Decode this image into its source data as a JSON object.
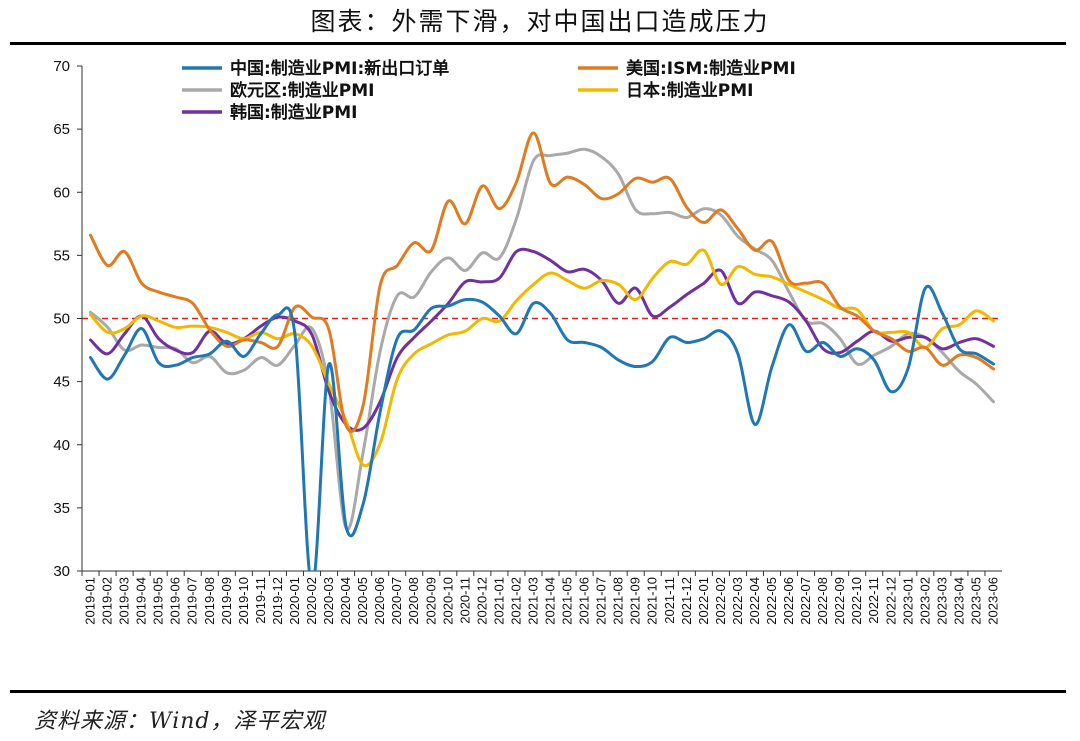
{
  "header": {
    "title": "图表：外需下滑，对中国出口造成压力"
  },
  "footer": {
    "source": "资料来源：Wind，泽平宏观"
  },
  "chart_data": {
    "type": "line",
    "ylim": [
      30,
      70
    ],
    "yticks": [
      30,
      35,
      40,
      45,
      50,
      55,
      60,
      65,
      70
    ],
    "reference_line": {
      "value": 50,
      "color": "#e02020",
      "style": "dashed"
    },
    "categories": [
      "2019-01",
      "2019-02",
      "2019-03",
      "2019-04",
      "2019-05",
      "2019-06",
      "2019-07",
      "2019-08",
      "2019-09",
      "2019-10",
      "2019-11",
      "2019-12",
      "2020-01",
      "2020-02",
      "2020-03",
      "2020-04",
      "2020-05",
      "2020-06",
      "2020-07",
      "2020-08",
      "2020-09",
      "2020-10",
      "2020-11",
      "2020-12",
      "2021-01",
      "2021-02",
      "2021-03",
      "2021-04",
      "2021-05",
      "2021-06",
      "2021-07",
      "2021-08",
      "2021-09",
      "2021-10",
      "2021-11",
      "2021-12",
      "2022-01",
      "2022-02",
      "2022-03",
      "2022-04",
      "2022-05",
      "2022-06",
      "2022-07",
      "2022-08",
      "2022-09",
      "2022-10",
      "2022-11",
      "2022-12",
      "2023-01",
      "2023-02",
      "2023-03",
      "2023-04",
      "2023-05",
      "2023-06"
    ],
    "legend_placement": "top",
    "series": [
      {
        "name": "中国:制造业PMI:新出口订单",
        "color": "#1f77b4",
        "values": [
          46.9,
          45.2,
          47.1,
          49.2,
          46.5,
          46.3,
          46.9,
          47.2,
          48.2,
          47.0,
          48.8,
          50.3,
          48.7,
          28.7,
          46.4,
          33.5,
          35.3,
          42.6,
          48.4,
          49.1,
          50.8,
          51.0,
          51.5,
          51.3,
          50.2,
          48.8,
          51.2,
          50.4,
          48.3,
          48.1,
          47.7,
          46.7,
          46.2,
          46.6,
          48.5,
          48.1,
          48.4,
          49.0,
          47.2,
          41.6,
          46.2,
          49.5,
          47.4,
          48.1,
          47.0,
          47.6,
          46.7,
          44.2,
          46.1,
          52.4,
          50.4,
          47.6,
          47.2,
          46.4
        ]
      },
      {
        "name": "美国:ISM:制造业PMI",
        "color": "#e07b20",
        "values": [
          56.6,
          54.2,
          55.3,
          52.8,
          52.1,
          51.7,
          51.2,
          49.1,
          47.8,
          48.3,
          48.1,
          47.8,
          50.9,
          50.1,
          49.1,
          41.5,
          43.1,
          52.6,
          54.2,
          56.0,
          55.4,
          59.3,
          57.5,
          60.5,
          58.7,
          60.8,
          64.7,
          60.7,
          61.2,
          60.6,
          59.5,
          59.9,
          61.1,
          60.8,
          61.1,
          58.8,
          57.6,
          58.6,
          57.1,
          55.4,
          56.1,
          53.0,
          52.8,
          52.8,
          50.9,
          50.2,
          49.0,
          48.4,
          47.4,
          47.7,
          46.3,
          47.1,
          46.9,
          46.0
        ]
      },
      {
        "name": "欧元区:制造业PMI",
        "color": "#a9a9a9",
        "values": [
          50.5,
          49.3,
          47.5,
          47.9,
          47.7,
          47.6,
          46.5,
          47.0,
          45.7,
          45.9,
          46.9,
          46.3,
          47.9,
          49.2,
          44.5,
          33.4,
          39.4,
          47.4,
          51.8,
          51.7,
          53.7,
          54.8,
          53.8,
          55.2,
          54.8,
          57.9,
          62.5,
          62.9,
          63.1,
          63.4,
          62.8,
          61.4,
          58.6,
          58.3,
          58.4,
          58.0,
          58.7,
          58.2,
          56.5,
          55.5,
          54.6,
          52.1,
          49.8,
          49.6,
          48.4,
          46.4,
          47.1,
          47.8,
          48.8,
          48.5,
          47.3,
          45.8,
          44.8,
          43.4
        ]
      },
      {
        "name": "日本:制造业PMI",
        "color": "#f2b800",
        "values": [
          50.3,
          48.9,
          49.2,
          50.2,
          49.8,
          49.3,
          49.4,
          49.3,
          48.9,
          48.4,
          48.9,
          48.4,
          48.8,
          47.8,
          44.8,
          41.9,
          38.4,
          40.1,
          45.2,
          47.2,
          48.0,
          48.7,
          49.0,
          50.0,
          49.8,
          51.4,
          52.7,
          53.6,
          53.0,
          52.4,
          53.0,
          52.7,
          51.5,
          53.2,
          54.5,
          54.3,
          55.4,
          52.7,
          54.1,
          53.5,
          53.3,
          52.7,
          52.1,
          51.5,
          50.8,
          50.7,
          49.0,
          48.9,
          48.9,
          47.7,
          49.2,
          49.5,
          50.6,
          49.8
        ]
      },
      {
        "name": "韩国:制造业PMI",
        "color": "#7030a0",
        "values": [
          48.3,
          47.2,
          48.8,
          50.2,
          48.4,
          47.5,
          47.3,
          49.0,
          48.0,
          48.4,
          49.4,
          50.1,
          49.8,
          48.7,
          44.2,
          41.6,
          41.3,
          43.4,
          46.9,
          48.5,
          49.8,
          51.2,
          52.9,
          52.9,
          53.2,
          55.3,
          55.3,
          54.6,
          53.7,
          53.9,
          53.0,
          51.2,
          52.4,
          50.2,
          50.9,
          51.9,
          52.8,
          53.8,
          51.2,
          52.1,
          51.8,
          51.3,
          49.8,
          47.6,
          47.3,
          48.2,
          49.0,
          48.2,
          48.5,
          48.5,
          47.6,
          48.1,
          48.4,
          47.8
        ]
      }
    ]
  }
}
